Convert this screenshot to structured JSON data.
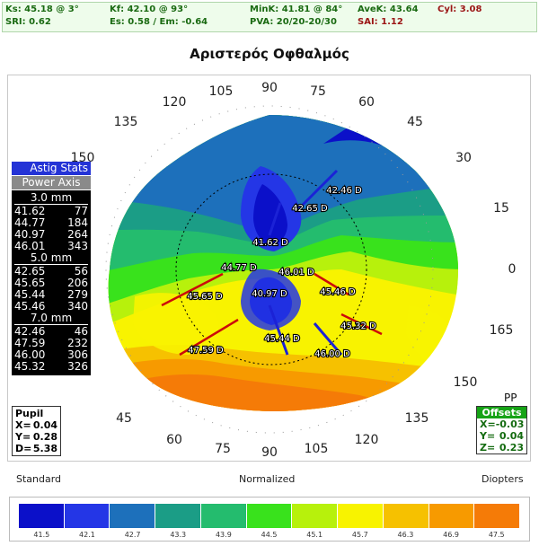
{
  "header": {
    "ks": "Ks: 45.18 @  3°",
    "kf": "Kf: 42.10 @  93°",
    "mink": "MinK: 41.81 @  84°",
    "avek": "AveK: 43.64",
    "cyl": "Cyl:  3.08",
    "sri": "SRI: 0.62",
    "es": "Es: 0.58 / Em: -0.64",
    "pva": "PVA: 20/20-20/30",
    "sai": "SAI: 1.12"
  },
  "title": "Αριστερός Οφθαλμός",
  "astig": {
    "header": "Astig Stats",
    "subheader": "Power  Axis",
    "zones": [
      {
        "label": "3.0 mm",
        "rows": [
          [
            "41.62",
            "77"
          ],
          [
            "44.77",
            "184"
          ],
          [
            "40.97",
            "264"
          ],
          [
            "46.01",
            "343"
          ]
        ]
      },
      {
        "label": "5.0 mm",
        "rows": [
          [
            "42.65",
            "56"
          ],
          [
            "45.65",
            "206"
          ],
          [
            "45.44",
            "279"
          ],
          [
            "45.46",
            "340"
          ]
        ]
      },
      {
        "label": "7.0 mm",
        "rows": [
          [
            "42.46",
            "46"
          ],
          [
            "47.59",
            "232"
          ],
          [
            "46.00",
            "306"
          ],
          [
            "45.32",
            "326"
          ]
        ]
      }
    ]
  },
  "pupil": {
    "header": "Pupil",
    "x_label": "X=",
    "x": "0.04",
    "y_label": "Y=",
    "y": "0.28",
    "d_label": "D=",
    "d": "5.38"
  },
  "pp": "PP",
  "offsets": {
    "header": "Offsets",
    "x_label": "X=",
    "x": "-0.03",
    "y_label": "Y=",
    "y": "0.04",
    "z_label": "Z=",
    "z": "0.23"
  },
  "axis_labels": [
    "0",
    "15",
    "30",
    "45",
    "60",
    "75",
    "90",
    "105",
    "120",
    "135",
    "150",
    "165",
    "150",
    "135",
    "120",
    "105",
    "90",
    "75",
    "60",
    "45"
  ],
  "map_labels": [
    {
      "name": "label-42-46",
      "text": "42.46 D"
    },
    {
      "name": "label-42-65",
      "text": "42.65 D"
    },
    {
      "name": "label-41-62",
      "text": "41.62 D"
    },
    {
      "name": "label-44-77",
      "text": "44.77 D"
    },
    {
      "name": "label-46-01",
      "text": "46.01 D"
    },
    {
      "name": "label-45-65",
      "text": "45.65 D"
    },
    {
      "name": "label-40-97",
      "text": "40.97 D"
    },
    {
      "name": "label-45-46",
      "text": "45.46 D"
    },
    {
      "name": "label-45-32",
      "text": "45.32 D"
    },
    {
      "name": "label-45-44",
      "text": "45.44 D"
    },
    {
      "name": "label-47-59",
      "text": "47.59 D"
    },
    {
      "name": "label-46-00",
      "text": "46.00 D"
    }
  ],
  "footer": {
    "standard": "Standard",
    "normalized": "Normalized",
    "diopters": "Diopters"
  },
  "scale": {
    "colors": [
      "#0b10c9",
      "#2436e6",
      "#1d70bb",
      "#1b9d86",
      "#24bc6e",
      "#39e21c",
      "#b7f10c",
      "#f8f300",
      "#f6c100",
      "#f79a00",
      "#f57b07"
    ],
    "ticks": [
      "41.5",
      "42.1",
      "42.7",
      "43.3",
      "43.9",
      "44.5",
      "45.1",
      "45.7",
      "46.3",
      "46.9",
      "47.5"
    ]
  }
}
